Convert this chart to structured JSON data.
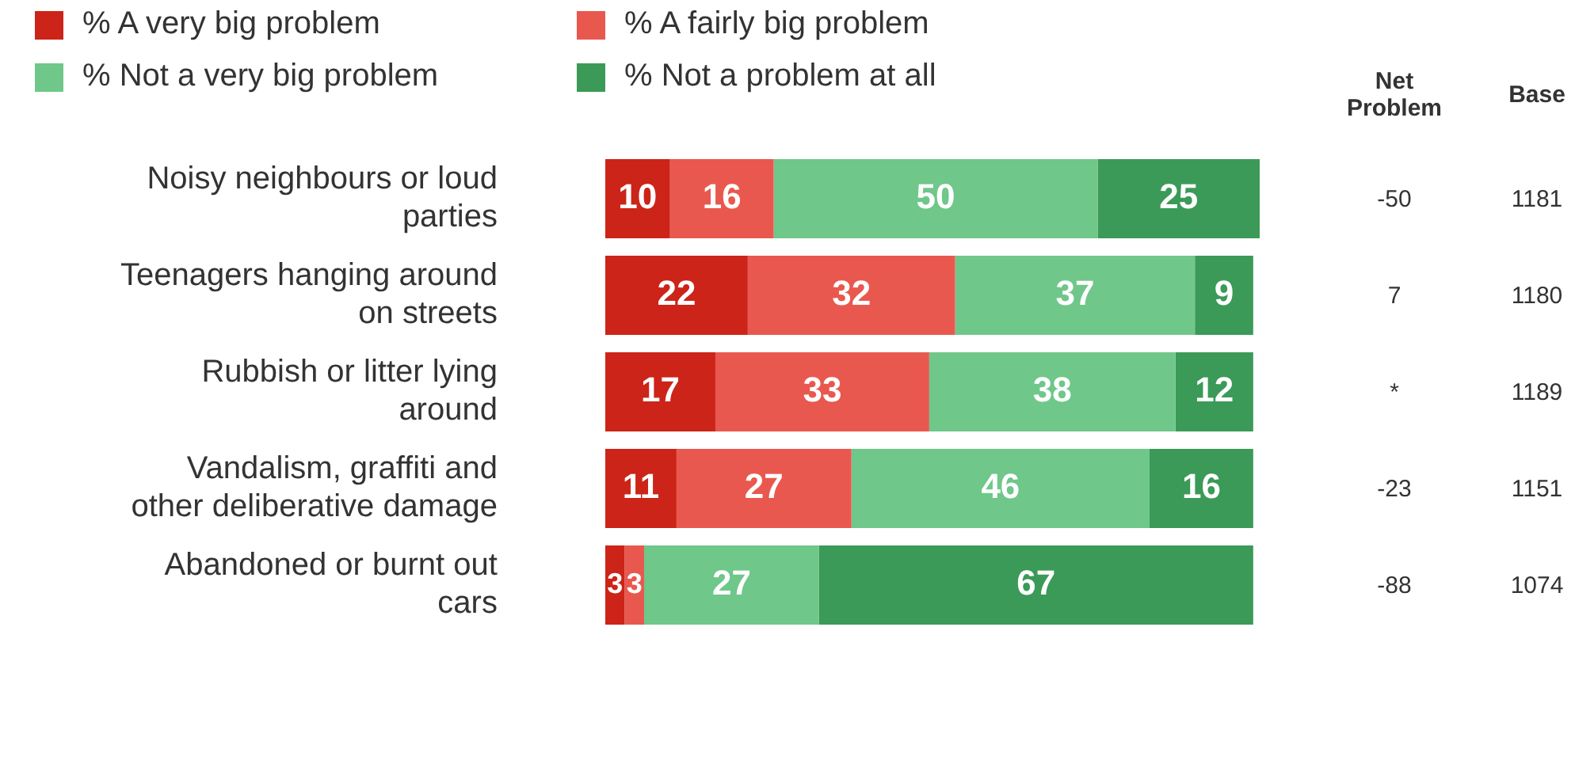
{
  "chart_data": {
    "type": "bar",
    "orientation": "horizontal",
    "stacked": true,
    "data_labels": true,
    "legend": "top left",
    "grid": false,
    "categories": [
      "Noisy neighbours or loud parties",
      "Teenagers hanging around on streets",
      "Rubbish or litter lying around",
      "Vandalism, graffiti and other deliberative damage",
      "Abandoned or burnt out cars"
    ],
    "series": [
      {
        "name": "% A very big problem",
        "color": "#cc2418",
        "values": [
          10,
          22,
          17,
          11,
          3
        ]
      },
      {
        "name": "% A fairly big problem",
        "color": "#e9584f",
        "values": [
          16,
          32,
          33,
          27,
          3
        ]
      },
      {
        "name": "% Not a very big problem",
        "color": "#6fc78a",
        "values": [
          50,
          37,
          38,
          46,
          27
        ]
      },
      {
        "name": "% Not a problem at all",
        "color": "#3b9a57",
        "values": [
          25,
          9,
          12,
          16,
          67
        ]
      }
    ],
    "annotations": [
      "Net Problem",
      "Base",
      "-50",
      "1181",
      "7",
      "1180",
      "*",
      "1189",
      "-23",
      "1151",
      "-88",
      "1074"
    ]
  }
}
